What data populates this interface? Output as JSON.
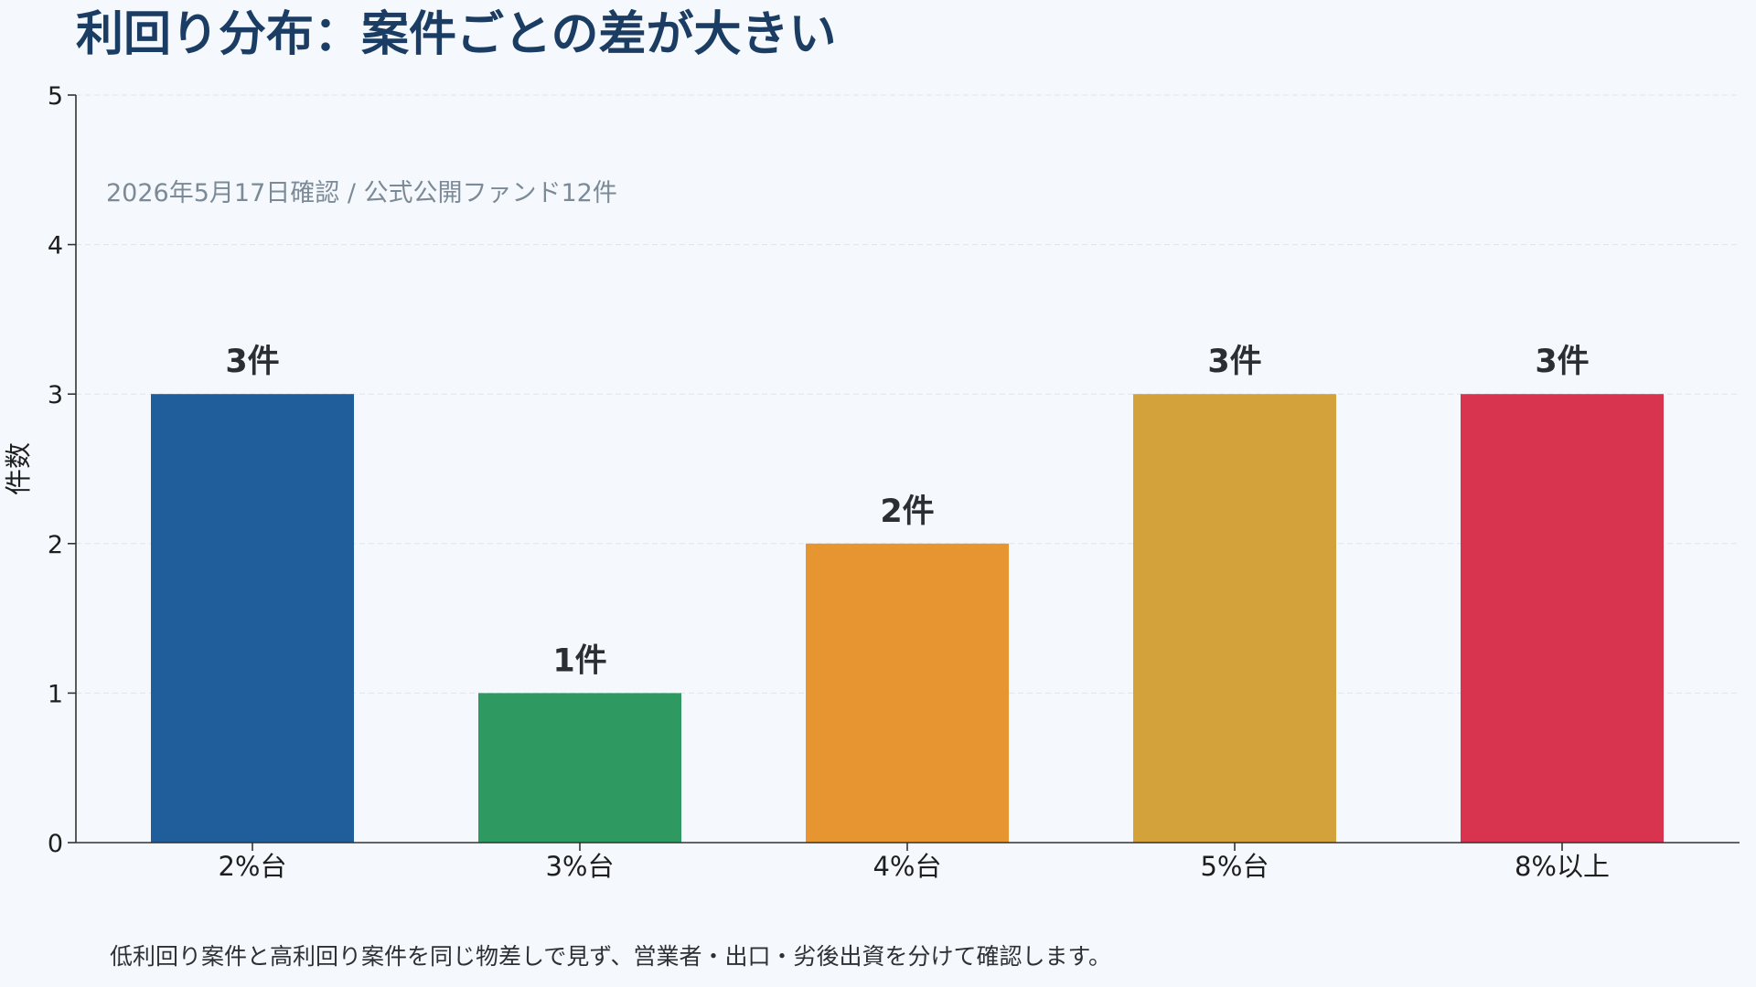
{
  "chart_data": {
    "type": "bar",
    "title": "利回り分布：案件ごとの差が大きい",
    "subtitle": "2026年5月17日確認 / 公式公開ファンド12件",
    "ylabel": "件数",
    "xlabel": "",
    "categories": [
      "2%台",
      "3%台",
      "4%台",
      "5%台",
      "8%以上"
    ],
    "values": [
      3,
      1,
      2,
      3,
      3
    ],
    "value_labels": [
      "3件",
      "1件",
      "2件",
      "3件",
      "3件"
    ],
    "colors": [
      "#1f5d9b",
      "#2e9961",
      "#e69530",
      "#d4a23b",
      "#d9344f"
    ],
    "ylim": [
      0,
      5
    ],
    "yticks": [
      "0",
      "1",
      "2",
      "3",
      "4",
      "5"
    ],
    "grid": true,
    "legend": "none"
  },
  "footnote": "低利回り案件と高利回り案件を同じ物差しで見ず、営業者・出口・劣後出資を分けて確認します。"
}
